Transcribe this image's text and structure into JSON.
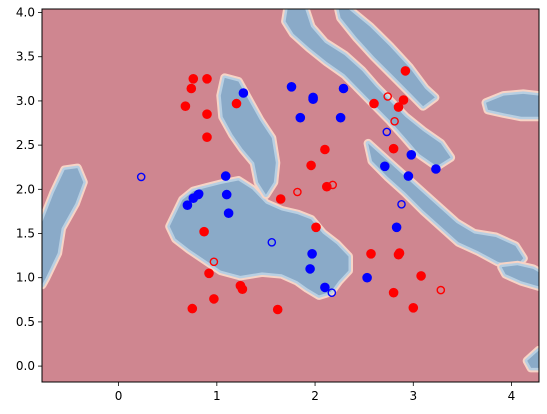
{
  "chart_data": {
    "type": "scatter",
    "title": "",
    "xlabel": "",
    "ylabel": "",
    "xlim": [
      -0.78,
      4.28
    ],
    "ylim": [
      -0.18,
      4.04
    ],
    "x_ticks": [
      0,
      1,
      2,
      3,
      4
    ],
    "x_tick_labels": [
      "0",
      "1",
      "2",
      "3",
      "4"
    ],
    "y_ticks": [
      0.0,
      0.5,
      1.0,
      1.5,
      2.0,
      2.5,
      3.0,
      3.5,
      4.0
    ],
    "y_tick_labels": [
      "0.0",
      "0.5",
      "1.0",
      "1.5",
      "2.0",
      "2.5",
      "3.0",
      "3.5",
      "4.0"
    ],
    "grid": false,
    "legend": false,
    "colors": {
      "class_red_region": "#cf8690",
      "class_blue_region": "#8aaac8",
      "boundary_light": "#f7d4c6",
      "boundary_blue": "#b8cfe2",
      "red_point": "#ff0000",
      "blue_point": "#0000ff"
    },
    "blue_regions": [
      [
        [
          -0.78,
          1.62
        ],
        [
          -0.66,
          1.96
        ],
        [
          -0.55,
          2.22
        ],
        [
          -0.42,
          2.24
        ],
        [
          -0.36,
          2.08
        ],
        [
          -0.44,
          1.84
        ],
        [
          -0.58,
          1.56
        ],
        [
          -0.62,
          1.28
        ],
        [
          -0.74,
          1.0
        ],
        [
          -0.78,
          0.92
        ]
      ],
      [
        [
          0.52,
          1.58
        ],
        [
          0.65,
          1.88
        ],
        [
          0.76,
          1.98
        ],
        [
          0.9,
          2.02
        ],
        [
          1.04,
          2.06
        ],
        [
          1.22,
          2.1
        ],
        [
          1.36,
          2.0
        ],
        [
          1.5,
          1.84
        ],
        [
          1.66,
          1.76
        ],
        [
          1.82,
          1.72
        ],
        [
          1.96,
          1.66
        ],
        [
          2.08,
          1.5
        ],
        [
          2.22,
          1.38
        ],
        [
          2.34,
          1.24
        ],
        [
          2.34,
          1.08
        ],
        [
          2.24,
          0.96
        ],
        [
          2.16,
          0.84
        ],
        [
          2.04,
          0.8
        ],
        [
          1.92,
          0.88
        ],
        [
          1.82,
          0.96
        ],
        [
          1.66,
          1.04
        ],
        [
          1.46,
          1.06
        ],
        [
          1.24,
          1.02
        ],
        [
          1.04,
          1.08
        ],
        [
          0.88,
          1.2
        ],
        [
          0.72,
          1.32
        ],
        [
          0.58,
          1.44
        ]
      ],
      [
        [
          1.08,
          3.26
        ],
        [
          1.22,
          3.22
        ],
        [
          1.34,
          2.98
        ],
        [
          1.44,
          2.78
        ],
        [
          1.56,
          2.58
        ],
        [
          1.6,
          2.3
        ],
        [
          1.58,
          2.08
        ],
        [
          1.5,
          1.94
        ],
        [
          1.42,
          2.08
        ],
        [
          1.38,
          2.3
        ],
        [
          1.26,
          2.46
        ],
        [
          1.16,
          2.62
        ],
        [
          1.06,
          2.82
        ],
        [
          1.04,
          3.06
        ]
      ],
      [
        [
          1.72,
          4.04
        ],
        [
          1.9,
          4.04
        ],
        [
          1.96,
          3.84
        ],
        [
          2.1,
          3.66
        ],
        [
          2.3,
          3.52
        ],
        [
          2.48,
          3.34
        ],
        [
          2.62,
          3.16
        ],
        [
          2.78,
          2.98
        ],
        [
          2.92,
          2.82
        ],
        [
          3.1,
          2.66
        ],
        [
          3.28,
          2.52
        ],
        [
          3.38,
          2.36
        ],
        [
          3.24,
          2.26
        ],
        [
          3.06,
          2.4
        ],
        [
          2.92,
          2.58
        ],
        [
          2.76,
          2.78
        ],
        [
          2.6,
          2.96
        ],
        [
          2.44,
          3.14
        ],
        [
          2.3,
          3.3
        ],
        [
          2.12,
          3.44
        ],
        [
          1.94,
          3.6
        ],
        [
          1.78,
          3.76
        ],
        [
          1.7,
          3.9
        ]
      ],
      [
        [
          2.34,
          4.04
        ],
        [
          2.56,
          3.84
        ],
        [
          2.76,
          3.62
        ],
        [
          2.96,
          3.38
        ],
        [
          3.12,
          3.14
        ],
        [
          3.22,
          3.04
        ],
        [
          3.1,
          2.94
        ],
        [
          2.96,
          3.1
        ],
        [
          2.78,
          3.3
        ],
        [
          2.6,
          3.5
        ],
        [
          2.42,
          3.72
        ],
        [
          2.26,
          3.94
        ],
        [
          2.24,
          4.04
        ]
      ],
      [
        [
          2.54,
          2.52
        ],
        [
          2.72,
          2.34
        ],
        [
          2.9,
          2.16
        ],
        [
          3.08,
          1.98
        ],
        [
          3.26,
          1.8
        ],
        [
          3.44,
          1.62
        ],
        [
          3.62,
          1.5
        ],
        [
          3.84,
          1.46
        ],
        [
          4.04,
          1.36
        ],
        [
          4.12,
          1.22
        ],
        [
          4.04,
          1.12
        ],
        [
          3.86,
          1.18
        ],
        [
          3.66,
          1.3
        ],
        [
          3.46,
          1.4
        ],
        [
          3.28,
          1.58
        ],
        [
          3.1,
          1.76
        ],
        [
          2.92,
          1.96
        ],
        [
          2.74,
          2.14
        ],
        [
          2.58,
          2.32
        ]
      ],
      [
        [
          3.74,
          2.98
        ],
        [
          3.92,
          3.06
        ],
        [
          4.12,
          3.08
        ],
        [
          4.28,
          3.06
        ],
        [
          4.28,
          2.82
        ],
        [
          4.1,
          2.82
        ],
        [
          3.92,
          2.86
        ],
        [
          3.76,
          2.9
        ]
      ],
      [
        [
          3.9,
          1.12
        ],
        [
          4.06,
          1.14
        ],
        [
          4.22,
          1.1
        ],
        [
          4.28,
          1.06
        ],
        [
          4.28,
          0.9
        ],
        [
          4.1,
          0.96
        ],
        [
          3.94,
          1.04
        ]
      ],
      [
        [
          4.16,
          0.06
        ],
        [
          4.28,
          0.18
        ],
        [
          4.28,
          -0.02
        ],
        [
          4.2,
          -0.02
        ]
      ]
    ],
    "red_filled": [
      [
        0.76,
        3.25
      ],
      [
        0.9,
        3.25
      ],
      [
        0.74,
        3.14
      ],
      [
        0.68,
        2.94
      ],
      [
        0.9,
        2.85
      ],
      [
        0.9,
        2.59
      ],
      [
        1.2,
        2.97
      ],
      [
        0.87,
        1.52
      ],
      [
        0.92,
        1.05
      ],
      [
        0.97,
        0.76
      ],
      [
        0.75,
        0.65
      ],
      [
        1.24,
        0.91
      ],
      [
        1.26,
        0.87
      ],
      [
        1.62,
        0.64
      ],
      [
        1.65,
        1.89
      ],
      [
        1.96,
        2.27
      ],
      [
        2.01,
        1.57
      ],
      [
        2.1,
        2.45
      ],
      [
        2.12,
        2.03
      ],
      [
        2.6,
        2.97
      ],
      [
        2.57,
        1.27
      ],
      [
        2.8,
        2.46
      ],
      [
        2.85,
        2.93
      ],
      [
        2.9,
        3.01
      ],
      [
        2.92,
        3.34
      ],
      [
        2.86,
        1.28
      ],
      [
        2.85,
        1.26
      ],
      [
        2.8,
        0.83
      ],
      [
        3.08,
        1.02
      ],
      [
        3.0,
        0.66
      ]
    ],
    "red_hollow": [
      [
        0.97,
        1.18
      ],
      [
        1.82,
        1.97
      ],
      [
        2.18,
        2.05
      ],
      [
        2.74,
        3.05
      ],
      [
        2.81,
        2.77
      ],
      [
        3.28,
        0.86
      ]
    ],
    "blue_filled": [
      [
        0.7,
        1.82
      ],
      [
        0.76,
        1.9
      ],
      [
        0.81,
        1.94
      ],
      [
        1.09,
        2.15
      ],
      [
        1.1,
        1.94
      ],
      [
        1.12,
        1.73
      ],
      [
        1.27,
        3.09
      ],
      [
        1.76,
        3.16
      ],
      [
        1.85,
        2.81
      ],
      [
        1.98,
        3.04
      ],
      [
        1.98,
        3.02
      ],
      [
        2.26,
        2.81
      ],
      [
        2.29,
        3.14
      ],
      [
        1.95,
        1.1
      ],
      [
        1.97,
        1.27
      ],
      [
        2.1,
        0.89
      ],
      [
        2.53,
        1.0
      ],
      [
        2.71,
        2.26
      ],
      [
        2.83,
        1.57
      ],
      [
        2.95,
        2.15
      ],
      [
        2.98,
        2.39
      ],
      [
        3.23,
        2.23
      ]
    ],
    "blue_hollow": [
      [
        0.23,
        2.14
      ],
      [
        0.82,
        1.95
      ],
      [
        1.56,
        1.4
      ],
      [
        2.17,
        0.83
      ],
      [
        2.73,
        2.65
      ],
      [
        2.88,
        1.83
      ]
    ]
  }
}
